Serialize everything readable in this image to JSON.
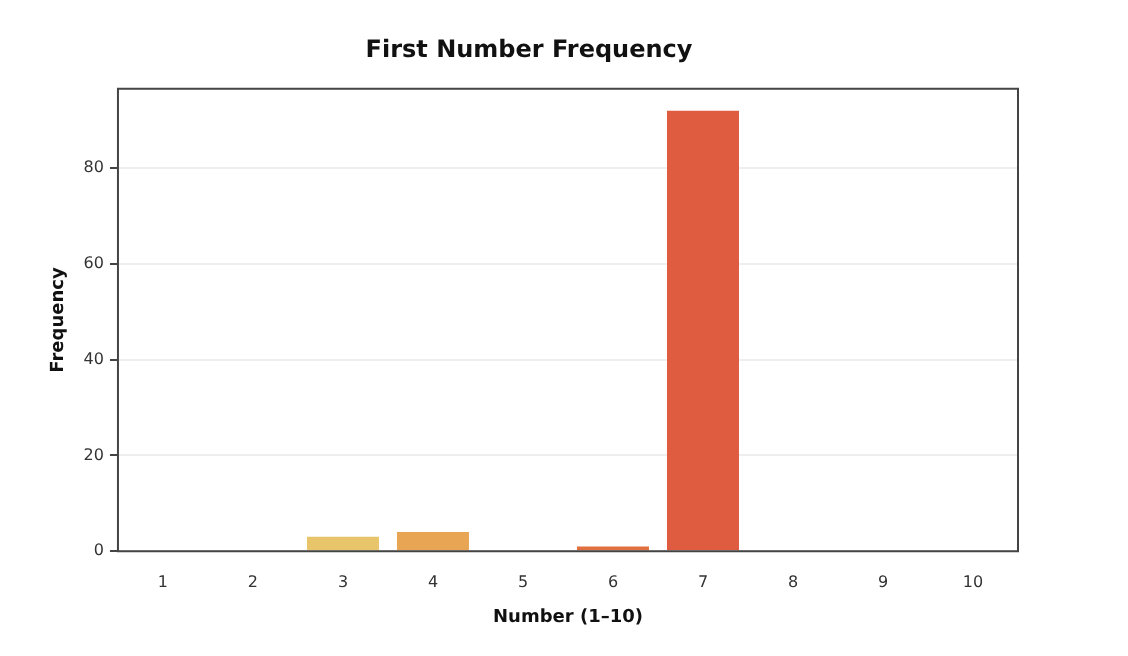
{
  "chart_data": {
    "type": "bar",
    "title": "First Number Frequency",
    "xlabel": "Number (1–10)",
    "ylabel": "Frequency",
    "categories": [
      "1",
      "2",
      "3",
      "4",
      "5",
      "6",
      "7",
      "8",
      "9",
      "10"
    ],
    "values": [
      0,
      0,
      3,
      4,
      0,
      1,
      92,
      0,
      0,
      0
    ],
    "colors": [
      "#f5e6a0",
      "#f0d585",
      "#e8c56a",
      "#e8a655",
      "#e58a4a",
      "#e07040",
      "#e05c40",
      "#d04838",
      "#c03a32",
      "#b02e2e"
    ],
    "ylim": [
      0,
      96.6
    ],
    "yticks": [
      0,
      20,
      40,
      60,
      80
    ],
    "grid": "y",
    "legend": false
  }
}
